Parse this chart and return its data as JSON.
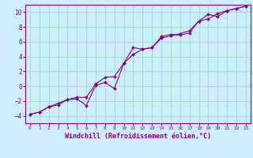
{
  "background_color": "#cceeff",
  "grid_color": "#aaddcc",
  "line_color": "#880088",
  "marker_color": "#880088",
  "xlabel": "Windchill (Refroidissement éolien,°C)",
  "xlabel_fontsize": 6.0,
  "xlim": [
    -0.5,
    23.5
  ],
  "ylim": [
    -5,
    11
  ],
  "yticks": [
    -4,
    -2,
    0,
    2,
    4,
    6,
    8,
    10
  ],
  "xticks": [
    0,
    1,
    2,
    3,
    4,
    5,
    6,
    7,
    8,
    9,
    10,
    11,
    12,
    13,
    14,
    15,
    16,
    17,
    18,
    19,
    20,
    21,
    22,
    23
  ],
  "series1_x": [
    0,
    1,
    2,
    3,
    4,
    5,
    6,
    7,
    8,
    9,
    10,
    11,
    12,
    13,
    14,
    15,
    16,
    17,
    18,
    19,
    20,
    21,
    22,
    23
  ],
  "series1_y": [
    -3.8,
    -3.5,
    -2.8,
    -2.5,
    -1.8,
    -1.7,
    -2.6,
    0.1,
    0.5,
    -0.3,
    3.1,
    5.2,
    5.0,
    5.2,
    6.7,
    7.0,
    6.9,
    7.2,
    8.8,
    9.7,
    9.4,
    10.2,
    10.5,
    10.8
  ],
  "series2_x": [
    0,
    1,
    2,
    3,
    4,
    5,
    6,
    7,
    8,
    9,
    10,
    11,
    12,
    13,
    14,
    15,
    16,
    17,
    18,
    19,
    20,
    21,
    22,
    23
  ],
  "series2_y": [
    -3.8,
    -3.5,
    -2.8,
    -2.3,
    -1.8,
    -1.5,
    -1.5,
    0.3,
    1.2,
    1.3,
    3.1,
    4.3,
    5.0,
    5.2,
    6.5,
    6.8,
    7.1,
    7.5,
    8.8,
    9.1,
    9.8,
    10.2,
    10.5,
    10.8
  ]
}
